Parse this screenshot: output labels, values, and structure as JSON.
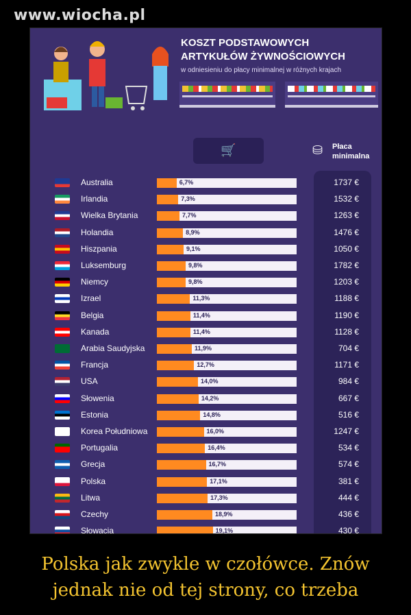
{
  "site": "www.wiocha.pl",
  "infographic": {
    "title_line1": "KOSZT PODSTAWOWYCH",
    "title_line2": "ARTYKUŁÓW ŻYWNOŚCIOWYCH",
    "subtitle": "w odniesieniu do płacy minimalnej w różnych krajach",
    "wage_header_line1": "Płaca",
    "wage_header_line2": "minimalna",
    "cart_icon": "shopping-cart-icon",
    "coins_icon": "coins-icon"
  },
  "colors": {
    "background": "#3c2f6d",
    "bar": "#ff8a20",
    "track": "#f4f0f8",
    "caption": "#f4c430"
  },
  "chart_data": {
    "type": "bar",
    "categories": [
      "Australia",
      "Irlandia",
      "Wielka Brytania",
      "Holandia",
      "Hiszpania",
      "Luksemburg",
      "Niemcy",
      "Izrael",
      "Belgia",
      "Kanada",
      "Arabia Saudyjska",
      "Francja",
      "USA",
      "Słowenia",
      "Estonia",
      "Korea Południowa",
      "Portugalia",
      "Grecja",
      "Polska",
      "Litwa",
      "Czechy",
      "Słowacja"
    ],
    "values": [
      6.7,
      7.3,
      7.7,
      8.9,
      9.1,
      9.8,
      9.8,
      11.3,
      11.4,
      11.4,
      11.9,
      12.7,
      14.0,
      14.2,
      14.8,
      16.0,
      16.4,
      16.7,
      17.1,
      17.3,
      18.9,
      19.1
    ],
    "labels": [
      "6,7%",
      "7,3%",
      "7,7%",
      "8,9%",
      "9,1%",
      "9,8%",
      "9,8%",
      "11,3%",
      "11,4%",
      "11,4%",
      "11,9%",
      "12,7%",
      "14,0%",
      "14,2%",
      "14,8%",
      "16,0%",
      "16,4%",
      "16,7%",
      "17,1%",
      "17,3%",
      "18,9%",
      "19,1%"
    ],
    "wages": [
      "1737 €",
      "1532 €",
      "1263 €",
      "1476 €",
      "1050 €",
      "1782 €",
      "1203 €",
      "1188 €",
      "1190 €",
      "1128 €",
      "704 €",
      "1171 €",
      "984 €",
      "667 €",
      "516 €",
      "1247 €",
      "534 €",
      "574 €",
      "381 €",
      "444 €",
      "436 €",
      "430 €"
    ],
    "wage_values": [
      1737,
      1532,
      1263,
      1476,
      1050,
      1782,
      1203,
      1188,
      1190,
      1128,
      704,
      1171,
      984,
      667,
      516,
      1247,
      534,
      574,
      381,
      444,
      436,
      430
    ],
    "flags": [
      [
        "#1f3a93",
        "#1f3a93",
        "#e53935"
      ],
      [
        "#169b62",
        "#ffffff",
        "#ff883e"
      ],
      [
        "#1f3a93",
        "#ffffff",
        "#c8102e"
      ],
      [
        "#ae1c28",
        "#ffffff",
        "#21468b"
      ],
      [
        "#c60b1e",
        "#ffc400",
        "#c60b1e"
      ],
      [
        "#ed2939",
        "#ffffff",
        "#00a1de"
      ],
      [
        "#000000",
        "#dd0000",
        "#ffce00"
      ],
      [
        "#ffffff",
        "#0038b8",
        "#ffffff"
      ],
      [
        "#000000",
        "#fdda24",
        "#ef3340"
      ],
      [
        "#ff0000",
        "#ffffff",
        "#ff0000"
      ],
      [
        "#006c35",
        "#006c35",
        "#006c35"
      ],
      [
        "#0055a4",
        "#ffffff",
        "#ef4135"
      ],
      [
        "#b22234",
        "#ffffff",
        "#3c3b6e"
      ],
      [
        "#ffffff",
        "#0000ff",
        "#ff0000"
      ],
      [
        "#0072ce",
        "#000000",
        "#ffffff"
      ],
      [
        "#ffffff",
        "#ffffff",
        "#ffffff"
      ],
      [
        "#006600",
        "#ff0000",
        "#ff0000"
      ],
      [
        "#0d5eaf",
        "#ffffff",
        "#0d5eaf"
      ],
      [
        "#ffffff",
        "#ffffff",
        "#dc143c"
      ],
      [
        "#fdb913",
        "#006a44",
        "#c1272d"
      ],
      [
        "#ffffff",
        "#d7141a",
        "#11457e"
      ],
      [
        "#ffffff",
        "#0b4ea2",
        "#ee1c25"
      ]
    ],
    "xlim": [
      0,
      20
    ]
  },
  "caption": {
    "line1": "Polska jak zwykle w czołówce. Znów",
    "line2": "jednak nie od tej strony, co trzeba"
  }
}
